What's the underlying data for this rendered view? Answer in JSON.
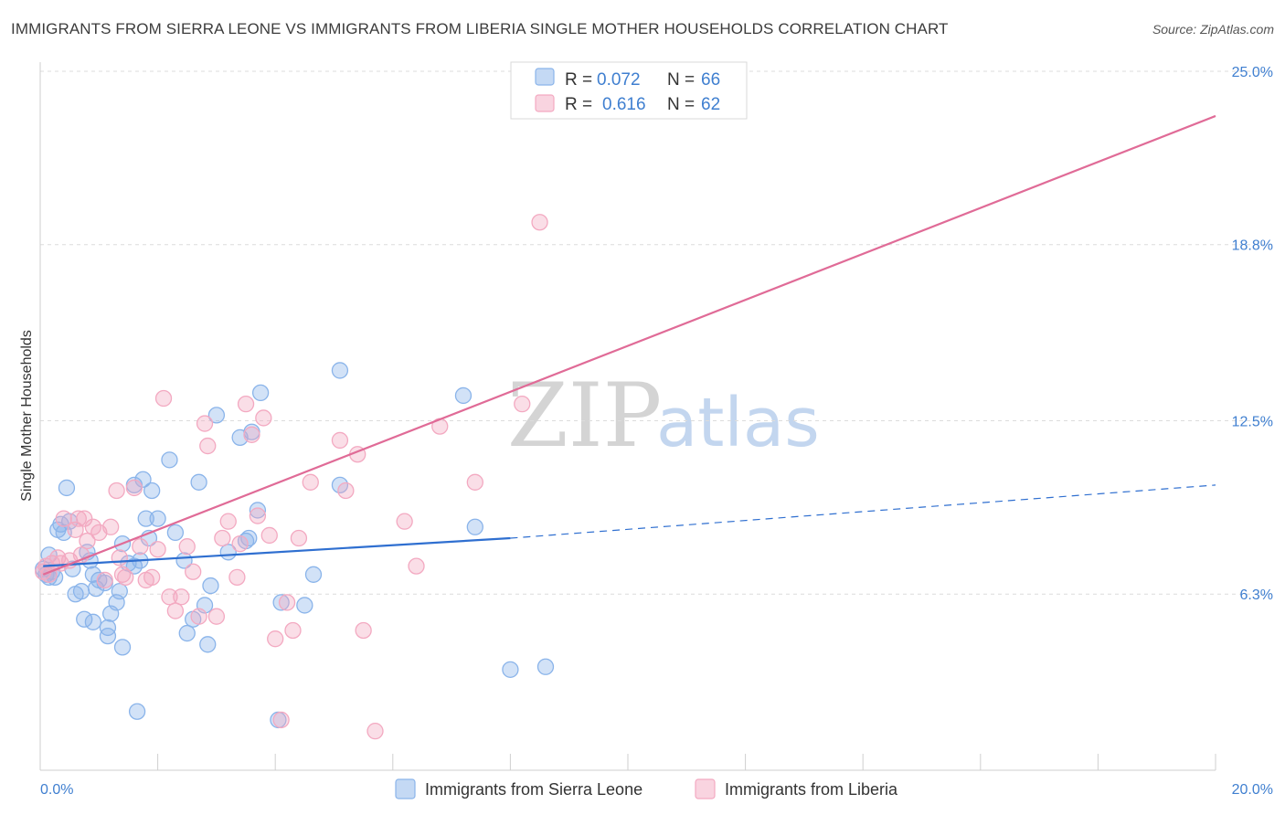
{
  "title": "IMMIGRANTS FROM SIERRA LEONE VS IMMIGRANTS FROM LIBERIA SINGLE MOTHER HOUSEHOLDS CORRELATION CHART",
  "source": "Source: ZipAtlas.com",
  "watermark": {
    "zip": "ZIP",
    "atlas": "atlas"
  },
  "legend_top": {
    "rows": [
      {
        "r_label": "R =",
        "r_value": "0.072",
        "n_label": "N =",
        "n_value": "66",
        "color": "#8ab4ea"
      },
      {
        "r_label": "R =",
        "r_value": "0.616",
        "n_label": "N =",
        "n_value": "62",
        "color": "#f3a9c1"
      }
    ]
  },
  "legend_bottom": [
    {
      "label": "Immigrants from Sierra Leone",
      "color": "#8ab4ea"
    },
    {
      "label": "Immigrants from Liberia",
      "color": "#f3a9c1"
    }
  ],
  "chart_data": {
    "type": "scatter",
    "title": "IMMIGRANTS FROM SIERRA LEONE VS IMMIGRANTS FROM LIBERIA SINGLE MOTHER HOUSEHOLDS CORRELATION CHART",
    "xlabel": "",
    "ylabel": "Single Mother Households",
    "xlim": [
      0,
      20
    ],
    "ylim": [
      0,
      25
    ],
    "x_tick_labels": [
      "0.0%",
      "20.0%"
    ],
    "y_ticks": [
      6.3,
      12.5,
      18.8,
      25.0
    ],
    "y_tick_labels": [
      "6.3%",
      "12.5%",
      "18.8%",
      "25.0%"
    ],
    "grid": true,
    "series": [
      {
        "name": "Immigrants from Sierra Leone",
        "color": "#8ab4ea",
        "line_color": "#2f6fd0",
        "trend": {
          "x_start": 0.05,
          "y_start": 7.3,
          "x_solid_end": 8.0,
          "y_solid_end": 8.3,
          "x_end": 20.0,
          "y_end": 10.2
        },
        "points": [
          [
            0.05,
            7.2
          ],
          [
            0.1,
            7.0
          ],
          [
            0.15,
            6.9
          ],
          [
            0.2,
            7.1
          ],
          [
            0.15,
            7.7
          ],
          [
            0.25,
            6.9
          ],
          [
            0.3,
            8.6
          ],
          [
            0.35,
            8.8
          ],
          [
            0.4,
            8.5
          ],
          [
            0.5,
            8.9
          ],
          [
            0.45,
            10.1
          ],
          [
            0.55,
            7.2
          ],
          [
            0.6,
            6.3
          ],
          [
            0.7,
            6.4
          ],
          [
            0.8,
            7.8
          ],
          [
            0.75,
            5.4
          ],
          [
            0.85,
            7.5
          ],
          [
            0.9,
            7.0
          ],
          [
            1.0,
            6.8
          ],
          [
            0.95,
            6.5
          ],
          [
            1.1,
            6.7
          ],
          [
            0.9,
            5.3
          ],
          [
            1.2,
            5.6
          ],
          [
            1.15,
            5.1
          ],
          [
            1.3,
            6.0
          ],
          [
            1.35,
            6.4
          ],
          [
            1.4,
            8.1
          ],
          [
            1.5,
            7.4
          ],
          [
            1.6,
            7.3
          ],
          [
            1.7,
            7.5
          ],
          [
            1.75,
            10.4
          ],
          [
            1.8,
            9.0
          ],
          [
            1.85,
            8.3
          ],
          [
            1.9,
            10.0
          ],
          [
            1.6,
            10.2
          ],
          [
            1.4,
            4.4
          ],
          [
            1.15,
            4.8
          ],
          [
            1.65,
            2.1
          ],
          [
            2.0,
            9.0
          ],
          [
            2.2,
            11.1
          ],
          [
            2.3,
            8.5
          ],
          [
            2.45,
            7.5
          ],
          [
            2.5,
            4.9
          ],
          [
            2.6,
            5.4
          ],
          [
            2.7,
            10.3
          ],
          [
            2.8,
            5.9
          ],
          [
            2.9,
            6.6
          ],
          [
            2.85,
            4.5
          ],
          [
            3.0,
            12.7
          ],
          [
            3.2,
            7.8
          ],
          [
            3.4,
            11.9
          ],
          [
            3.5,
            8.2
          ],
          [
            3.55,
            8.3
          ],
          [
            3.6,
            12.1
          ],
          [
            3.7,
            9.3
          ],
          [
            3.75,
            13.5
          ],
          [
            4.05,
            1.8
          ],
          [
            4.1,
            6.0
          ],
          [
            4.5,
            5.9
          ],
          [
            4.65,
            7.0
          ],
          [
            5.1,
            10.2
          ],
          [
            5.1,
            14.3
          ],
          [
            7.2,
            13.4
          ],
          [
            7.4,
            8.7
          ],
          [
            8.0,
            3.6
          ],
          [
            8.6,
            3.7
          ]
        ]
      },
      {
        "name": "Immigrants from Liberia",
        "color": "#f3a9c1",
        "line_color": "#e06b97",
        "trend": {
          "x_start": 0.05,
          "y_start": 7.0,
          "x_end": 20.0,
          "y_end": 23.4
        },
        "points": [
          [
            0.05,
            7.1
          ],
          [
            0.1,
            7.3
          ],
          [
            0.15,
            7.0
          ],
          [
            0.2,
            7.4
          ],
          [
            0.3,
            7.6
          ],
          [
            0.35,
            7.4
          ],
          [
            0.4,
            9.0
          ],
          [
            0.5,
            7.5
          ],
          [
            0.6,
            8.6
          ],
          [
            0.65,
            9.0
          ],
          [
            0.7,
            7.7
          ],
          [
            0.75,
            9.0
          ],
          [
            0.8,
            8.2
          ],
          [
            0.9,
            8.7
          ],
          [
            1.0,
            8.5
          ],
          [
            1.1,
            6.8
          ],
          [
            1.2,
            8.7
          ],
          [
            1.3,
            10.0
          ],
          [
            1.35,
            7.6
          ],
          [
            1.4,
            7.0
          ],
          [
            1.45,
            6.9
          ],
          [
            1.6,
            10.1
          ],
          [
            1.7,
            8.0
          ],
          [
            1.8,
            6.8
          ],
          [
            1.9,
            6.9
          ],
          [
            2.0,
            7.9
          ],
          [
            2.1,
            13.3
          ],
          [
            2.2,
            6.2
          ],
          [
            2.3,
            5.7
          ],
          [
            2.4,
            6.2
          ],
          [
            2.5,
            8.0
          ],
          [
            2.6,
            7.1
          ],
          [
            2.7,
            5.5
          ],
          [
            2.8,
            12.4
          ],
          [
            2.85,
            11.6
          ],
          [
            3.0,
            5.5
          ],
          [
            3.1,
            8.3
          ],
          [
            3.2,
            8.9
          ],
          [
            3.35,
            6.9
          ],
          [
            3.4,
            8.1
          ],
          [
            3.5,
            13.1
          ],
          [
            3.6,
            12.0
          ],
          [
            3.7,
            9.1
          ],
          [
            3.8,
            12.6
          ],
          [
            3.9,
            8.4
          ],
          [
            4.0,
            4.7
          ],
          [
            4.1,
            1.8
          ],
          [
            4.2,
            6.0
          ],
          [
            4.3,
            5.0
          ],
          [
            4.4,
            8.3
          ],
          [
            4.6,
            10.3
          ],
          [
            5.1,
            11.8
          ],
          [
            5.2,
            10.0
          ],
          [
            5.4,
            11.3
          ],
          [
            5.5,
            5.0
          ],
          [
            5.7,
            1.4
          ],
          [
            6.2,
            8.9
          ],
          [
            6.4,
            7.3
          ],
          [
            6.8,
            12.3
          ],
          [
            7.4,
            10.3
          ],
          [
            8.2,
            13.1
          ],
          [
            8.5,
            19.6
          ]
        ]
      }
    ]
  }
}
